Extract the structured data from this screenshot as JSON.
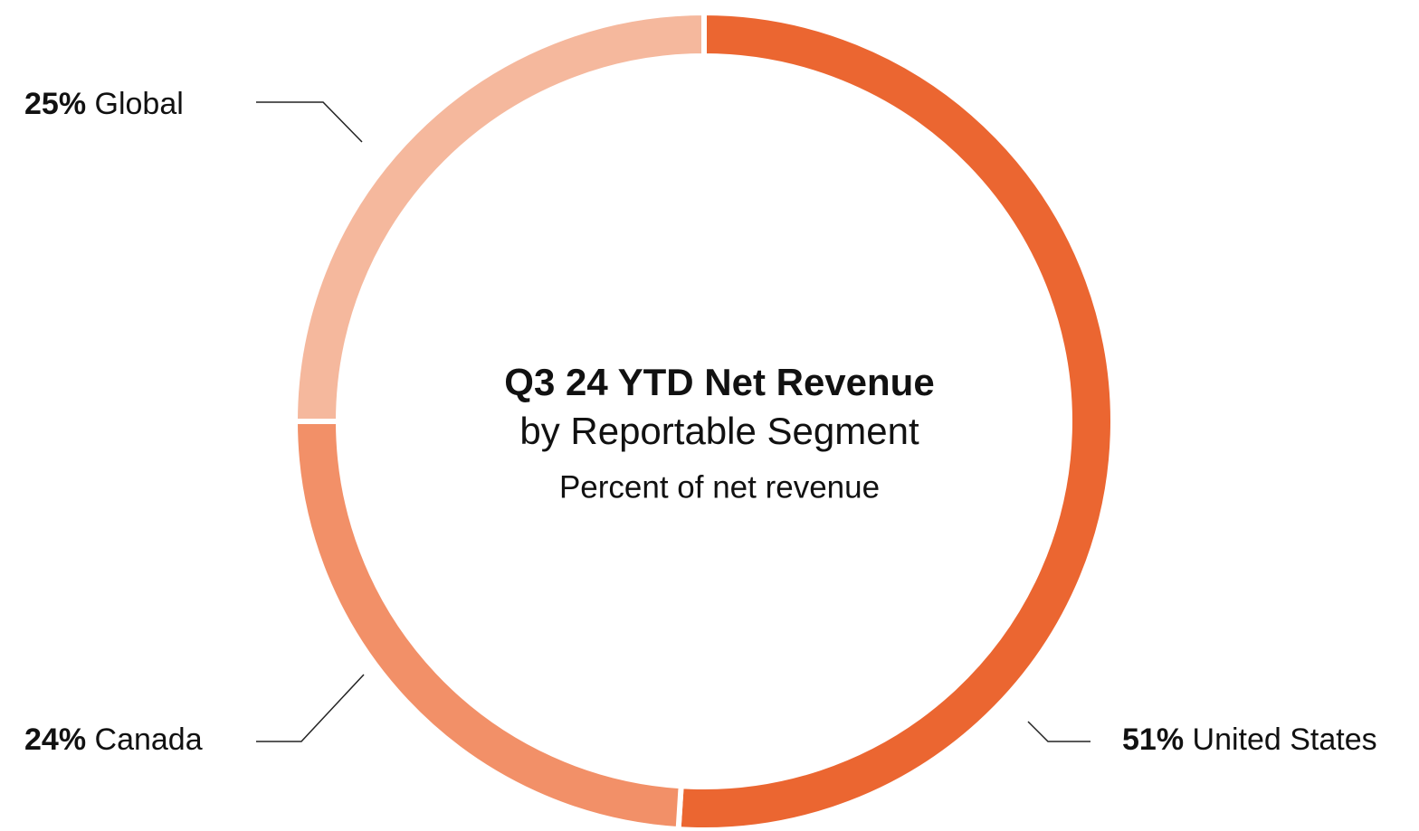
{
  "chart_data": {
    "type": "donut",
    "title": "Q3 24 YTD Net Revenue",
    "subtitle": "by Reportable Segment",
    "caption": "Percent of net revenue",
    "categories": [
      "United States",
      "Canada",
      "Global"
    ],
    "values": [
      51,
      24,
      25
    ],
    "value_labels": [
      "51%",
      "24%",
      "25%"
    ],
    "colors": [
      "#eb6631",
      "#f29068",
      "#f5b89d"
    ]
  }
}
